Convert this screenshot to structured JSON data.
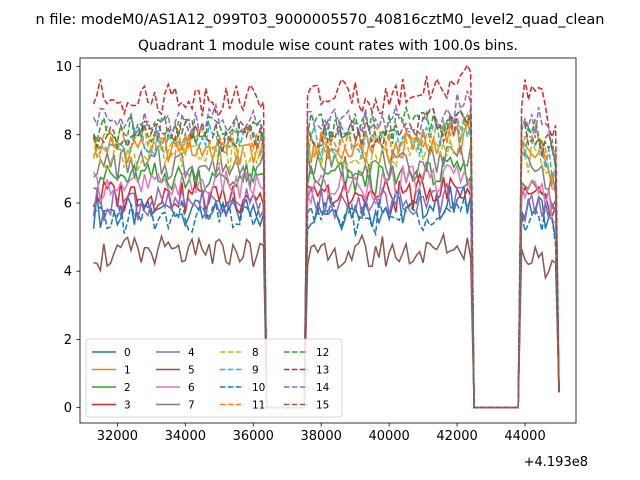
{
  "chart_data": {
    "type": "line",
    "suptitle": "n file: modeM0/AS1A12_099T03_9000005570_40816cztM0_level2_quad_clean",
    "title": "Quadrant 1 module wise count rates with 100.0s bins.",
    "xlabel": "",
    "ylabel": "",
    "x_offset_label": "+4.193e8",
    "xlim": [
      30900,
      45500
    ],
    "ylim": [
      -0.45,
      10.25
    ],
    "x_ticks": [
      32000,
      34000,
      36000,
      38000,
      40000,
      42000,
      44000
    ],
    "x_tick_labels": [
      "32000",
      "34000",
      "36000",
      "38000",
      "40000",
      "42000",
      "44000"
    ],
    "y_ticks": [
      0,
      2,
      4,
      6,
      8,
      10
    ],
    "y_tick_labels": [
      "0",
      "2",
      "4",
      "6",
      "8",
      "10"
    ],
    "grid": false,
    "legend_position": "lower-left",
    "x_range": {
      "start": 31300,
      "end": 45000,
      "step": 100
    },
    "gaps": [
      {
        "from": 36400,
        "to": 37500,
        "value": 0
      },
      {
        "from": 42500,
        "to": 43800,
        "value": 0
      }
    ],
    "series": [
      {
        "name": "0",
        "color": "#1f77b4",
        "dash": "solid",
        "baseline": 5.8
      },
      {
        "name": "1",
        "color": "#ff7f0e",
        "dash": "solid",
        "baseline": 7.6
      },
      {
        "name": "2",
        "color": "#2ca02c",
        "dash": "solid",
        "baseline": 6.7
      },
      {
        "name": "3",
        "color": "#d62728",
        "dash": "solid",
        "baseline": 6.2
      },
      {
        "name": "4",
        "color": "#9467bd",
        "dash": "solid",
        "baseline": 6.0
      },
      {
        "name": "5",
        "color": "#8c564b",
        "dash": "solid",
        "baseline": 4.5
      },
      {
        "name": "6",
        "color": "#e377c2",
        "dash": "solid",
        "baseline": 6.5
      },
      {
        "name": "7",
        "color": "#7f7f7f",
        "dash": "solid",
        "baseline": 7.1
      },
      {
        "name": "8",
        "color": "#bcbd22",
        "dash": "dashed",
        "baseline": 7.4
      },
      {
        "name": "9",
        "color": "#17becf",
        "dash": "dashed",
        "baseline": 7.8
      },
      {
        "name": "10",
        "color": "#1f77b4",
        "dash": "dashed",
        "baseline": 5.6
      },
      {
        "name": "11",
        "color": "#ff7f0e",
        "dash": "dashed",
        "baseline": 7.8
      },
      {
        "name": "12",
        "color": "#2ca02c",
        "dash": "dashed",
        "baseline": 8.2
      },
      {
        "name": "13",
        "color": "#d62728",
        "dash": "dashed",
        "baseline": 9.1
      },
      {
        "name": "14",
        "color": "#9467bd",
        "dash": "dashed",
        "baseline": 8.4
      },
      {
        "name": "15",
        "color": "#8c564b",
        "dash": "dashed",
        "baseline": 8.0
      }
    ]
  }
}
